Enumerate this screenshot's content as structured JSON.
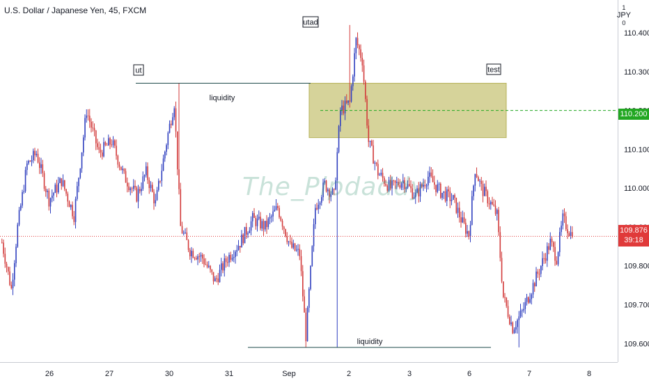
{
  "header": {
    "symbol": "U.S. Dollar / Japanese Yen, 45, FXCM",
    "currency": "JPY",
    "currency_superscript": "1",
    "currency_subscript": "0"
  },
  "watermark": "The_Pipdaddy",
  "price_tags": {
    "target": {
      "value": "110.200",
      "color": "#22a722"
    },
    "last": {
      "value": "109.876",
      "countdown": "39:18",
      "color": "#e03a3a"
    }
  },
  "chart_data": {
    "type": "candlestick",
    "y_ticks": [
      "110.400",
      "110.300",
      "110.200",
      "110.100",
      "110.000",
      "109.900",
      "109.800",
      "109.700",
      "109.600"
    ],
    "y_tick_values": [
      110.4,
      110.3,
      110.2,
      110.1,
      110.0,
      109.9,
      109.8,
      109.7,
      109.6
    ],
    "ylim": [
      109.57,
      110.47
    ],
    "x_ticks": [
      "26",
      "27",
      "30",
      "31",
      "Sep",
      "2",
      "3",
      "6",
      "7",
      "8"
    ],
    "x_tick_index": [
      0,
      1,
      2,
      3,
      4,
      5,
      6,
      7,
      8,
      9
    ],
    "annotations": [
      {
        "label": "ut",
        "kind": "box-label",
        "price": 110.27
      },
      {
        "label": "utad",
        "kind": "box-label",
        "price": 110.41
      },
      {
        "label": "test",
        "kind": "box-label",
        "price": 110.28
      },
      {
        "label": "liquidity",
        "kind": "line-label",
        "price": 110.27
      },
      {
        "label": "liquidity",
        "kind": "line-label",
        "price": 109.59
      }
    ],
    "zone": {
      "top": 110.27,
      "bottom": 110.13,
      "color": "#c8c478"
    },
    "target_line": 110.2,
    "last_price": 109.876,
    "colors": {
      "up": "#2f3fbf",
      "down": "#d23a3a"
    },
    "keypoints": [
      [
        0,
        109.86
      ],
      [
        6,
        109.74
      ],
      [
        10,
        109.9
      ],
      [
        16,
        110.06
      ],
      [
        22,
        110.09
      ],
      [
        30,
        109.97
      ],
      [
        38,
        110.02
      ],
      [
        46,
        109.93
      ],
      [
        54,
        110.2
      ],
      [
        62,
        110.09
      ],
      [
        70,
        110.12
      ],
      [
        78,
        110.03
      ],
      [
        86,
        109.98
      ],
      [
        92,
        110.04
      ],
      [
        98,
        109.96
      ],
      [
        106,
        110.14
      ],
      [
        110,
        110.22
      ],
      [
        114,
        109.9
      ],
      [
        120,
        109.84
      ],
      [
        128,
        109.82
      ],
      [
        136,
        109.76
      ],
      [
        144,
        109.82
      ],
      [
        152,
        109.86
      ],
      [
        160,
        109.92
      ],
      [
        168,
        109.9
      ],
      [
        176,
        109.95
      ],
      [
        184,
        109.85
      ],
      [
        190,
        109.83
      ],
      [
        194,
        109.62
      ],
      [
        200,
        109.95
      ],
      [
        206,
        110.01
      ],
      [
        212,
        109.98
      ],
      [
        216,
        110.2
      ],
      [
        222,
        110.22
      ],
      [
        226,
        110.38
      ],
      [
        230,
        110.33
      ],
      [
        234,
        110.12
      ],
      [
        240,
        110.04
      ],
      [
        248,
        110.0
      ],
      [
        256,
        110.02
      ],
      [
        264,
        109.98
      ],
      [
        272,
        110.03
      ],
      [
        280,
        109.99
      ],
      [
        288,
        109.97
      ],
      [
        294,
        109.91
      ],
      [
        298,
        109.88
      ],
      [
        302,
        110.05
      ],
      [
        306,
        110.0
      ],
      [
        312,
        109.96
      ],
      [
        316,
        109.93
      ],
      [
        320,
        109.72
      ],
      [
        326,
        109.64
      ],
      [
        332,
        109.68
      ],
      [
        338,
        109.74
      ],
      [
        344,
        109.8
      ],
      [
        350,
        109.86
      ],
      [
        354,
        109.82
      ],
      [
        358,
        109.92
      ],
      [
        362,
        109.89
      ],
      [
        364,
        109.876
      ]
    ]
  }
}
